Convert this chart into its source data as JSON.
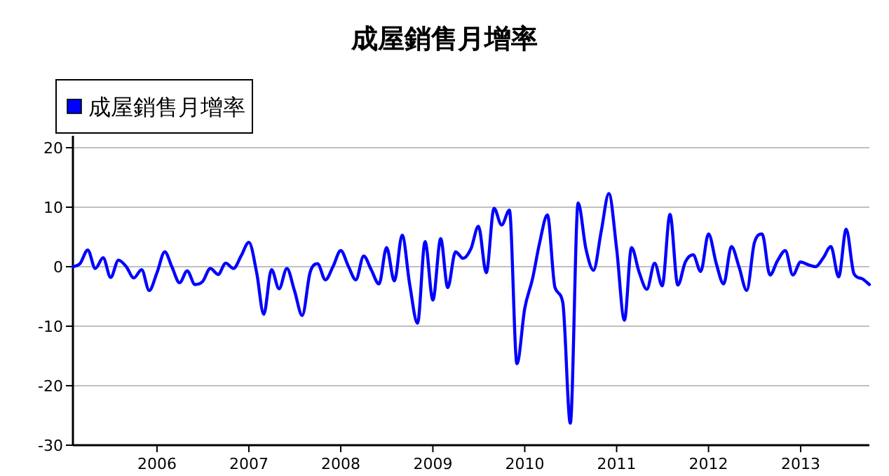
{
  "chart_data": {
    "type": "line",
    "title": "成屋銷售月增率",
    "x": [
      "2005-02",
      "2005-03",
      "2005-04",
      "2005-05",
      "2005-06",
      "2005-07",
      "2005-08",
      "2005-09",
      "2005-10",
      "2005-11",
      "2005-12",
      "2006-01",
      "2006-02",
      "2006-03",
      "2006-04",
      "2006-05",
      "2006-06",
      "2006-07",
      "2006-08",
      "2006-09",
      "2006-10",
      "2006-11",
      "2006-12",
      "2007-01",
      "2007-02",
      "2007-03",
      "2007-04",
      "2007-05",
      "2007-06",
      "2007-07",
      "2007-08",
      "2007-09",
      "2007-10",
      "2007-11",
      "2007-12",
      "2008-01",
      "2008-02",
      "2008-03",
      "2008-04",
      "2008-05",
      "2008-06",
      "2008-07",
      "2008-08",
      "2008-09",
      "2008-10",
      "2008-11",
      "2008-12",
      "2009-01",
      "2009-02",
      "2009-03",
      "2009-04",
      "2009-05",
      "2009-06",
      "2009-07",
      "2009-08",
      "2009-09",
      "2009-10",
      "2009-11",
      "2009-12",
      "2010-01",
      "2010-02",
      "2010-03",
      "2010-04",
      "2010-05",
      "2010-06",
      "2010-07",
      "2010-08",
      "2010-09",
      "2010-10",
      "2010-11",
      "2010-12",
      "2011-01",
      "2011-02",
      "2011-03",
      "2011-04",
      "2011-05",
      "2011-06",
      "2011-07",
      "2011-08",
      "2011-09",
      "2011-10",
      "2011-11",
      "2011-12",
      "2012-01",
      "2012-02",
      "2012-03",
      "2012-04",
      "2012-05",
      "2012-06",
      "2012-07",
      "2012-08",
      "2012-09",
      "2012-10",
      "2012-11",
      "2012-12",
      "2013-01",
      "2013-02",
      "2013-03",
      "2013-04",
      "2013-05",
      "2013-06",
      "2013-07",
      "2013-08",
      "2013-09",
      "2013-10"
    ],
    "series": [
      {
        "name": "成屋銷售月增率",
        "color": "#0000ff",
        "values": [
          0,
          0.5,
          2.8,
          -0.3,
          1.5,
          -1.8,
          1.1,
          0,
          -1.9,
          -0.5,
          -4,
          -1,
          2.5,
          0,
          -2.7,
          -0.7,
          -3,
          -2.5,
          -0.3,
          -1.3,
          0.6,
          -0.3,
          1.8,
          4.1,
          -1,
          -8,
          -0.5,
          -3.7,
          -0.3,
          -4,
          -8.2,
          -1,
          0.5,
          -2.2,
          0,
          2.7,
          0,
          -2.2,
          1.8,
          -0.5,
          -2.9,
          3.2,
          -2.4,
          5.3,
          -3,
          -9.5,
          4.2,
          -5.6,
          4.7,
          -3.5,
          2.5,
          1.4,
          3,
          6.8,
          -1,
          9.8,
          7,
          9.5,
          -16.3,
          -7,
          -2,
          4,
          8.7,
          -3.5,
          -6,
          -26.3,
          10.7,
          3,
          -0.6,
          6,
          12.3,
          3,
          -9,
          3.2,
          -1,
          -3.8,
          0.6,
          -3.2,
          8.8,
          -3.1,
          0.8,
          2,
          -0.8,
          5.5,
          0.5,
          -2.9,
          3.4,
          0,
          -4,
          4,
          5.5,
          -1.4,
          1,
          2.7,
          -1.4,
          0.8,
          0.3,
          0,
          1.5,
          3.4,
          -1.7,
          6.3,
          -1.2,
          -2,
          -3
        ]
      }
    ],
    "xlim": [
      "2005-02",
      "2013-10"
    ],
    "xticks": [
      "2006",
      "2007",
      "2008",
      "2009",
      "2010",
      "2011",
      "2012",
      "2013"
    ],
    "ylim": [
      -30,
      22
    ],
    "yticks": [
      -30,
      -20,
      -10,
      0,
      10,
      20
    ],
    "grid": "y",
    "legend": "top left",
    "marker": "none",
    "line_style": "solid"
  }
}
